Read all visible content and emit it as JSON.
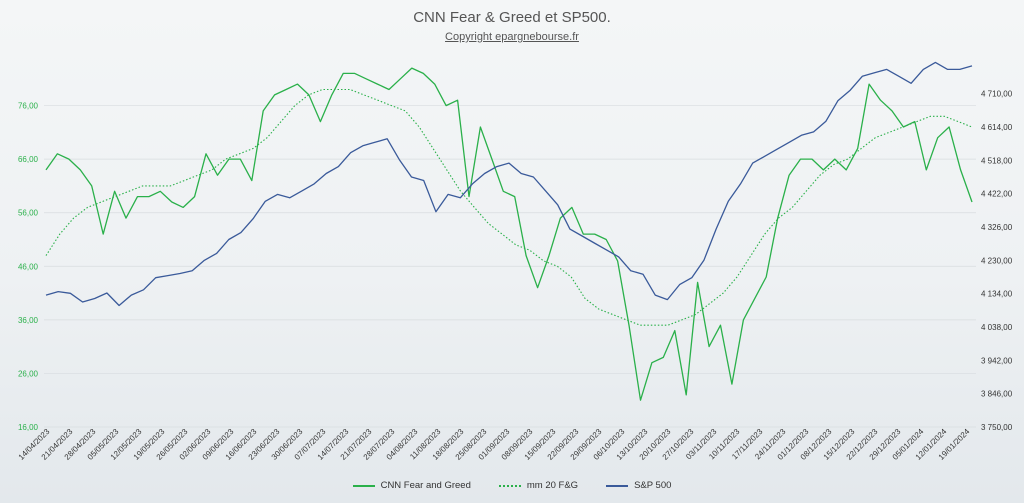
{
  "chart_data": {
    "type": "line",
    "title": "CNN Fear & Greed et SP500.",
    "subtitle": "Copyright epargnebourse.fr",
    "left_axis": {
      "ticks": [
        "16,00",
        "26,00",
        "36,00",
        "46,00",
        "56,00",
        "66,00",
        "76,00"
      ],
      "range": [
        16,
        86
      ]
    },
    "right_axis": {
      "ticks": [
        "3 750,00",
        "3 846,00",
        "3 942,00",
        "4 038,00",
        "4 134,00",
        "4 230,00",
        "4 326,00",
        "4 422,00",
        "4 518,00",
        "4 614,00",
        "4 710,00"
      ],
      "range": [
        3750,
        4830
      ]
    },
    "x_labels": [
      "14/04/2023",
      "21/04/2023",
      "28/04/2023",
      "05/05/2023",
      "12/05/2023",
      "19/05/2023",
      "26/05/2023",
      "02/06/2023",
      "09/06/2023",
      "16/06/2023",
      "23/06/2023",
      "30/06/2023",
      "07/07/2023",
      "14/07/2023",
      "21/07/2023",
      "28/07/2023",
      "04/08/2023",
      "11/08/2023",
      "18/08/2023",
      "25/08/2023",
      "01/09/2023",
      "08/09/2023",
      "15/09/2023",
      "22/09/2023",
      "29/09/2023",
      "06/10/2023",
      "13/10/2023",
      "20/10/2023",
      "27/10/2023",
      "03/11/2023",
      "10/11/2023",
      "17/11/2023",
      "24/11/2023",
      "01/12/2023",
      "08/12/2023",
      "15/12/2023",
      "22/12/2023",
      "29/12/2023",
      "05/01/2024",
      "12/01/2024",
      "19/01/2024"
    ],
    "series": [
      {
        "name": "CNN Fear and Greed",
        "axis": "left",
        "color": "#2ab04a",
        "style": "solid",
        "values": [
          64,
          67,
          66,
          64,
          61,
          52,
          60,
          55,
          59,
          59,
          60,
          58,
          57,
          59,
          67,
          63,
          66,
          66,
          62,
          75,
          78,
          79,
          80,
          78,
          73,
          78,
          82,
          82,
          81,
          80,
          79,
          81,
          83,
          82,
          80,
          76,
          77,
          59,
          72,
          66,
          60,
          59,
          48,
          42,
          48,
          55,
          57,
          52,
          52,
          51,
          47,
          35,
          21,
          28,
          29,
          34,
          22,
          43,
          31,
          35,
          24,
          36,
          40,
          44,
          55,
          63,
          66,
          66,
          64,
          66,
          64,
          68,
          80,
          77,
          75,
          72,
          73,
          64,
          70,
          72,
          64,
          58
        ]
      },
      {
        "name": "mm 20 F&G",
        "axis": "left",
        "color": "#2ab04a",
        "style": "dotted",
        "values": [
          48,
          52,
          55,
          57,
          58,
          59,
          60,
          61,
          61,
          61,
          62,
          63,
          64,
          66,
          67,
          68,
          70,
          73,
          76,
          78,
          79,
          79,
          79,
          78,
          77,
          76,
          75,
          72,
          68,
          64,
          60,
          57,
          54,
          52,
          50,
          49,
          47,
          46,
          44,
          40,
          38,
          37,
          36,
          35,
          35,
          35,
          36,
          37,
          39,
          41,
          44,
          48,
          52,
          55,
          57,
          60,
          63,
          65,
          66,
          68,
          70,
          71,
          72,
          73,
          74,
          74,
          73,
          72
        ]
      },
      {
        "name": "S&P 500",
        "axis": "right",
        "color": "#3a5a9a",
        "style": "solid",
        "values": [
          4130,
          4140,
          4135,
          4110,
          4120,
          4136,
          4100,
          4130,
          4145,
          4180,
          4186,
          4192,
          4200,
          4230,
          4250,
          4290,
          4310,
          4350,
          4400,
          4420,
          4410,
          4430,
          4450,
          4480,
          4500,
          4540,
          4560,
          4570,
          4580,
          4520,
          4470,
          4460,
          4370,
          4420,
          4410,
          4450,
          4480,
          4500,
          4510,
          4480,
          4470,
          4430,
          4390,
          4320,
          4300,
          4280,
          4260,
          4240,
          4200,
          4190,
          4130,
          4117,
          4160,
          4180,
          4230,
          4320,
          4400,
          4450,
          4510,
          4530,
          4550,
          4570,
          4590,
          4600,
          4630,
          4690,
          4720,
          4760,
          4770,
          4780,
          4760,
          4740,
          4780,
          4800,
          4780,
          4780,
          4790
        ]
      }
    ],
    "legend_position": "bottom",
    "grid": true
  },
  "legend": {
    "items": [
      "CNN Fear and Greed",
      "mm 20 F&G",
      "S&P 500"
    ]
  }
}
